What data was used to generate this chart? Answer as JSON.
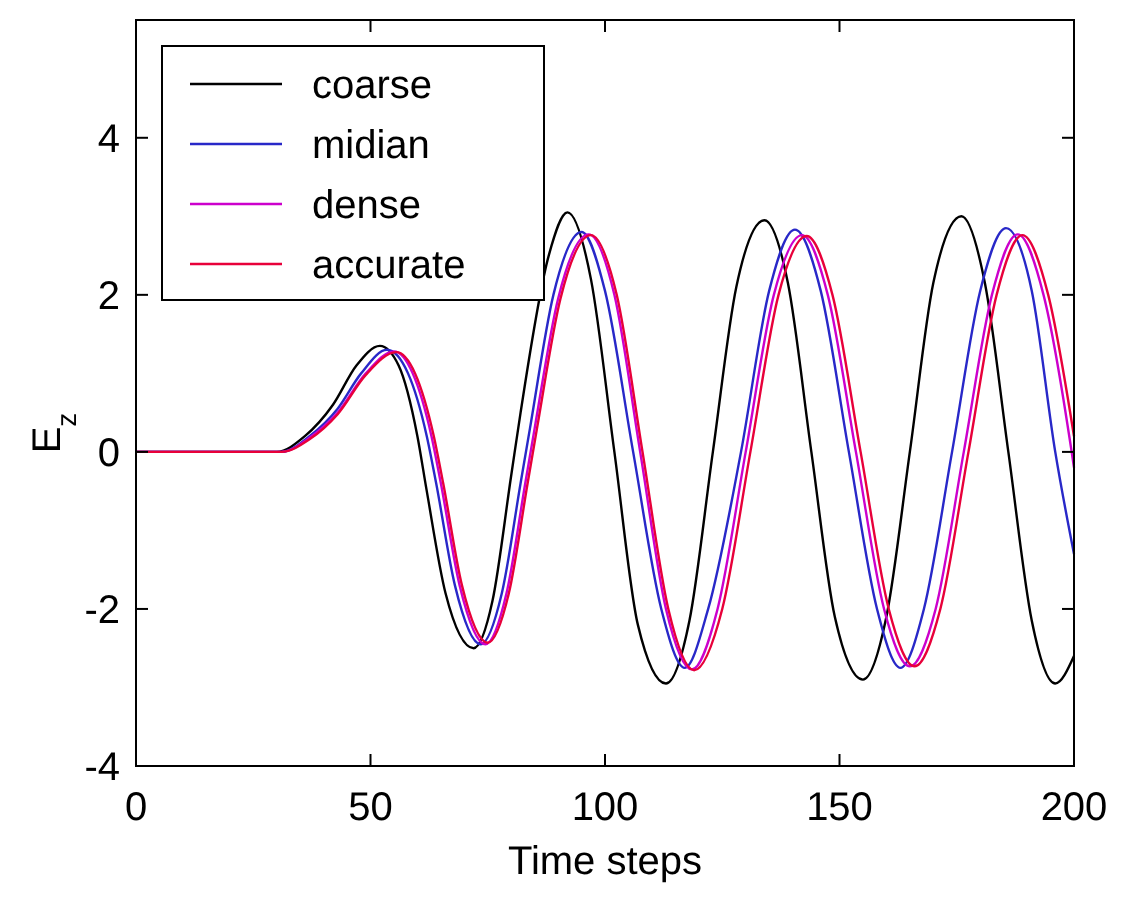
{
  "chart_data": {
    "type": "line",
    "xlabel": "Time steps",
    "ylabel": "E$_{z}$",
    "xlim": [
      0,
      200
    ],
    "xticks": [
      0,
      50,
      100,
      150,
      200
    ],
    "ylim": [
      -4,
      5.5
    ],
    "yticks": [
      -4,
      -2,
      0,
      2,
      4
    ],
    "legend": "top left",
    "grid": false,
    "line_style": "solid",
    "series": [
      {
        "name": "coarse",
        "color": "#000000",
        "x": [
          0,
          30,
          36,
          42,
          47,
          52,
          56,
          60,
          62,
          66,
          72,
          76,
          80,
          82,
          88,
          92,
          97,
          102,
          107,
          113,
          118,
          123,
          128,
          134,
          139,
          144,
          149,
          155,
          160,
          165,
          170,
          176,
          181,
          186,
          191,
          196,
          200
        ],
        "values": [
          0,
          0,
          0.2,
          0.6,
          1.1,
          1.35,
          1.1,
          0.2,
          -0.5,
          -1.8,
          -2.5,
          -1.9,
          -0.3,
          0.5,
          2.5,
          3.05,
          2.2,
          0,
          -2.2,
          -2.95,
          -2.15,
          0,
          2.1,
          2.95,
          2.15,
          0,
          -2.1,
          -2.9,
          -2.1,
          0,
          2.15,
          3.0,
          2.15,
          0,
          -2.15,
          -2.95,
          -2.6
        ]
      },
      {
        "name": "midian",
        "color": "#2828c8",
        "x": [
          0,
          31,
          37,
          43,
          48,
          53.5,
          58,
          62,
          64,
          68,
          73.5,
          78,
          82,
          84,
          89,
          95,
          100,
          106,
          112,
          117,
          122,
          129,
          135,
          140.5,
          146,
          152,
          158,
          163,
          168,
          174,
          180,
          185.5,
          191,
          196,
          200
        ],
        "values": [
          0,
          0,
          0.2,
          0.55,
          1.0,
          1.3,
          1.0,
          0.2,
          -0.4,
          -1.7,
          -2.45,
          -1.8,
          -0.4,
          0.3,
          2.0,
          2.8,
          2.05,
          0,
          -2.0,
          -2.75,
          -2.0,
          0,
          2.05,
          2.83,
          2.05,
          0,
          -2.0,
          -2.75,
          -2.0,
          0,
          2.05,
          2.85,
          2.05,
          0,
          -1.3
        ]
      },
      {
        "name": "dense",
        "color": "#cc00cc",
        "x": [
          0,
          31,
          37,
          43,
          49,
          55,
          59,
          63,
          65,
          69,
          74.5,
          79,
          83,
          85,
          90,
          96.5,
          102,
          107.5,
          113,
          118.5,
          124,
          130,
          136,
          142,
          147.5,
          153.5,
          159.5,
          165,
          170.5,
          176.5,
          182.5,
          188,
          193.5,
          199.5,
          200
        ],
        "values": [
          0,
          0,
          0.18,
          0.5,
          1.0,
          1.28,
          1.0,
          0.2,
          -0.4,
          -1.7,
          -2.45,
          -1.8,
          -0.4,
          0.3,
          1.95,
          2.77,
          2.0,
          0,
          -2.0,
          -2.77,
          -2.0,
          0,
          2.0,
          2.76,
          2.0,
          0,
          -2.0,
          -2.73,
          -2.0,
          0,
          2.0,
          2.77,
          2.0,
          0,
          -0.2
        ]
      },
      {
        "name": "accurate",
        "color": "#e8003a",
        "x": [
          0,
          31,
          37,
          43,
          49,
          55.5,
          59.5,
          63.5,
          65.5,
          69.5,
          75,
          79.5,
          83.5,
          85.5,
          90.5,
          97,
          102.5,
          108,
          113.5,
          119,
          125,
          131,
          137,
          143,
          148.5,
          154.5,
          160.5,
          166,
          171.5,
          177.5,
          183.5,
          189,
          194.5,
          200
        ],
        "values": [
          0,
          0,
          0.16,
          0.48,
          0.98,
          1.27,
          1.0,
          0.2,
          -0.4,
          -1.7,
          -2.43,
          -1.8,
          -0.4,
          0.3,
          1.95,
          2.76,
          2.0,
          0,
          -2.0,
          -2.78,
          -2.0,
          0,
          2.0,
          2.75,
          2.0,
          0,
          -2.0,
          -2.73,
          -2.0,
          0,
          2.0,
          2.76,
          2.0,
          0.2
        ]
      }
    ]
  }
}
